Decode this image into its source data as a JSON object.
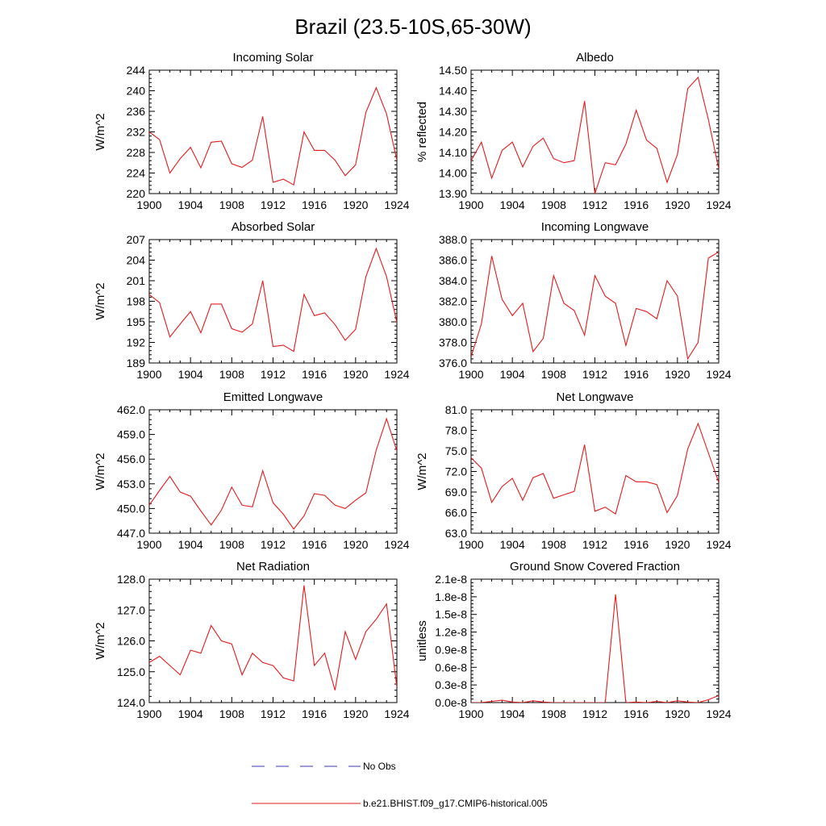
{
  "figure": {
    "title": "Brazil (23.5-10S,65-30W)",
    "legend": [
      {
        "label": "No Obs",
        "color": "#3a3ab4",
        "dash": "dashed"
      },
      {
        "label": "b.e21.BHIST.f09_g17.CMIP6-historical.005",
        "color": "#e41a1c",
        "dash": "solid"
      }
    ]
  },
  "chart_data": [
    {
      "type": "line",
      "title": "Incoming Solar",
      "ylabel": "W/m^2",
      "xlim": [
        1900,
        1924
      ],
      "ylim": [
        220,
        244
      ],
      "yticks": [
        220,
        224,
        228,
        232,
        236,
        240,
        244
      ],
      "ytick_labels": [
        "220",
        "224",
        "228",
        "232",
        "236",
        "240",
        "244"
      ],
      "xticks": [
        1900,
        1904,
        1908,
        1912,
        1916,
        1920,
        1924
      ],
      "x": [
        1900,
        1901,
        1902,
        1903,
        1904,
        1905,
        1906,
        1907,
        1908,
        1909,
        1910,
        1911,
        1912,
        1913,
        1914,
        1915,
        1916,
        1917,
        1918,
        1919,
        1920,
        1921,
        1922,
        1923,
        1924
      ],
      "series": [
        {
          "name": "b.e21.BHIST.f09_g17.CMIP6-historical.005",
          "color": "#e41a1c",
          "values": [
            232.0,
            230.5,
            224.0,
            226.8,
            229.0,
            225.0,
            230.0,
            230.2,
            225.8,
            225.1,
            226.5,
            235.0,
            222.2,
            222.8,
            221.7,
            232.0,
            228.4,
            228.4,
            226.5,
            223.5,
            225.6,
            235.8,
            240.6,
            235.5,
            226.5
          ]
        }
      ]
    },
    {
      "type": "line",
      "title": "Albedo",
      "ylabel": "% reflected",
      "xlim": [
        1900,
        1924
      ],
      "ylim": [
        13.9,
        14.5
      ],
      "yticks": [
        13.9,
        14.0,
        14.1,
        14.2,
        14.3,
        14.4,
        14.5
      ],
      "ytick_labels": [
        "13.90",
        "14.00",
        "14.10",
        "14.20",
        "14.30",
        "14.40",
        "14.50"
      ],
      "xticks": [
        1900,
        1904,
        1908,
        1912,
        1916,
        1920,
        1924
      ],
      "x": [
        1900,
        1901,
        1902,
        1903,
        1904,
        1905,
        1906,
        1907,
        1908,
        1909,
        1910,
        1911,
        1912,
        1913,
        1914,
        1915,
        1916,
        1917,
        1918,
        1919,
        1920,
        1921,
        1922,
        1923,
        1924
      ],
      "series": [
        {
          "name": "b.e21.BHIST.f09_g17.CMIP6-historical.005",
          "color": "#e41a1c",
          "values": [
            14.06,
            14.15,
            13.975,
            14.11,
            14.15,
            14.03,
            14.13,
            14.17,
            14.07,
            14.05,
            14.06,
            14.35,
            13.9,
            14.05,
            14.04,
            14.14,
            14.305,
            14.16,
            14.12,
            13.955,
            14.09,
            14.41,
            14.465,
            14.26,
            14.02
          ]
        }
      ]
    },
    {
      "type": "line",
      "title": "Absorbed Solar",
      "ylabel": "W/m^2",
      "xlim": [
        1900,
        1924
      ],
      "ylim": [
        189,
        207
      ],
      "yticks": [
        189,
        192,
        195,
        198,
        201,
        204,
        207
      ],
      "ytick_labels": [
        "189",
        "192",
        "195",
        "198",
        "201",
        "204",
        "207"
      ],
      "xticks": [
        1900,
        1904,
        1908,
        1912,
        1916,
        1920,
        1924
      ],
      "x": [
        1900,
        1901,
        1902,
        1903,
        1904,
        1905,
        1906,
        1907,
        1908,
        1909,
        1910,
        1911,
        1912,
        1913,
        1914,
        1915,
        1916,
        1917,
        1918,
        1919,
        1920,
        1921,
        1922,
        1923,
        1924
      ],
      "series": [
        {
          "name": "b.e21.BHIST.f09_g17.CMIP6-historical.005",
          "color": "#e41a1c",
          "values": [
            199.0,
            197.8,
            192.8,
            194.7,
            196.5,
            193.4,
            197.6,
            197.6,
            194.0,
            193.5,
            194.7,
            201.0,
            191.4,
            191.6,
            190.7,
            199.0,
            195.9,
            196.3,
            194.6,
            192.3,
            193.9,
            201.6,
            205.7,
            201.6,
            194.9
          ]
        }
      ]
    },
    {
      "type": "line",
      "title": "Incoming Longwave",
      "ylabel": "",
      "xlim": [
        1900,
        1924
      ],
      "ylim": [
        376,
        388
      ],
      "yticks": [
        376,
        378,
        380,
        382,
        384,
        386,
        388
      ],
      "ytick_labels": [
        "376.0",
        "378.0",
        "380.0",
        "382.0",
        "384.0",
        "386.0",
        "388.0"
      ],
      "xticks": [
        1900,
        1904,
        1908,
        1912,
        1916,
        1920,
        1924
      ],
      "x": [
        1900,
        1901,
        1902,
        1903,
        1904,
        1905,
        1906,
        1907,
        1908,
        1909,
        1910,
        1911,
        1912,
        1913,
        1914,
        1915,
        1916,
        1917,
        1918,
        1919,
        1920,
        1921,
        1922,
        1923,
        1924
      ],
      "series": [
        {
          "name": "b.e21.BHIST.f09_g17.CMIP6-historical.005",
          "color": "#e41a1c",
          "values": [
            376.6,
            379.8,
            386.4,
            382.2,
            380.6,
            381.8,
            377.1,
            378.4,
            384.5,
            381.8,
            381.1,
            378.7,
            384.5,
            382.5,
            381.8,
            377.7,
            381.3,
            381.0,
            380.3,
            384.0,
            382.5,
            376.4,
            378.0,
            386.2,
            386.8
          ]
        }
      ]
    },
    {
      "type": "line",
      "title": "Emitted Longwave",
      "ylabel": "W/m^2",
      "xlim": [
        1900,
        1924
      ],
      "ylim": [
        447,
        462
      ],
      "yticks": [
        447,
        450,
        453,
        456,
        459,
        462
      ],
      "ytick_labels": [
        "447.0",
        "450.0",
        "453.0",
        "456.0",
        "459.0",
        "462.0"
      ],
      "xticks": [
        1900,
        1904,
        1908,
        1912,
        1916,
        1920,
        1924
      ],
      "x": [
        1900,
        1901,
        1902,
        1903,
        1904,
        1905,
        1906,
        1907,
        1908,
        1909,
        1910,
        1911,
        1912,
        1913,
        1914,
        1915,
        1916,
        1917,
        1918,
        1919,
        1920,
        1921,
        1922,
        1923,
        1924
      ],
      "series": [
        {
          "name": "b.e21.BHIST.f09_g17.CMIP6-historical.005",
          "color": "#e41a1c",
          "values": [
            450.4,
            452.2,
            453.9,
            452.0,
            451.5,
            449.7,
            448.0,
            449.8,
            452.6,
            450.4,
            450.2,
            454.6,
            450.7,
            449.3,
            447.5,
            449.1,
            451.8,
            451.6,
            450.4,
            450.0,
            451.0,
            451.9,
            457.1,
            460.9,
            457.0
          ]
        }
      ]
    },
    {
      "type": "line",
      "title": "Net Longwave",
      "ylabel": "W/m^2",
      "xlim": [
        1900,
        1924
      ],
      "ylim": [
        63,
        81
      ],
      "yticks": [
        63,
        66,
        69,
        72,
        75,
        78,
        81
      ],
      "ytick_labels": [
        "63.0",
        "66.0",
        "69.0",
        "72.0",
        "75.0",
        "78.0",
        "81.0"
      ],
      "xticks": [
        1900,
        1904,
        1908,
        1912,
        1916,
        1920,
        1924
      ],
      "x": [
        1900,
        1901,
        1902,
        1903,
        1904,
        1905,
        1906,
        1907,
        1908,
        1909,
        1910,
        1911,
        1912,
        1913,
        1914,
        1915,
        1916,
        1917,
        1918,
        1919,
        1920,
        1921,
        1922,
        1923,
        1924
      ],
      "series": [
        {
          "name": "b.e21.BHIST.f09_g17.CMIP6-historical.005",
          "color": "#e41a1c",
          "values": [
            74.0,
            72.5,
            67.5,
            69.8,
            71.0,
            67.8,
            71.1,
            71.7,
            68.1,
            68.6,
            69.1,
            75.9,
            66.2,
            66.8,
            65.8,
            71.4,
            70.5,
            70.5,
            70.1,
            66.0,
            68.5,
            75.3,
            79.0,
            74.7,
            70.4
          ]
        }
      ]
    },
    {
      "type": "line",
      "title": "Net Radiation",
      "ylabel": "W/m^2",
      "xlim": [
        1900,
        1924
      ],
      "ylim": [
        124,
        128
      ],
      "yticks": [
        124,
        125,
        126,
        127,
        128
      ],
      "ytick_labels": [
        "124.0",
        "125.0",
        "126.0",
        "127.0",
        "128.0"
      ],
      "xticks": [
        1900,
        1904,
        1908,
        1912,
        1916,
        1920,
        1924
      ],
      "x": [
        1900,
        1901,
        1902,
        1903,
        1904,
        1905,
        1906,
        1907,
        1908,
        1909,
        1910,
        1911,
        1912,
        1913,
        1914,
        1915,
        1916,
        1917,
        1918,
        1919,
        1920,
        1921,
        1922,
        1923,
        1924
      ],
      "series": [
        {
          "name": "b.e21.BHIST.f09_g17.CMIP6-historical.005",
          "color": "#e41a1c",
          "values": [
            125.3,
            125.5,
            125.2,
            124.9,
            125.7,
            125.6,
            126.5,
            126.0,
            125.9,
            124.9,
            125.6,
            125.3,
            125.2,
            124.8,
            124.7,
            127.8,
            125.2,
            125.6,
            124.4,
            126.3,
            125.4,
            126.3,
            126.7,
            127.2,
            124.5
          ]
        }
      ]
    },
    {
      "type": "line",
      "title": "Ground Snow Covered Fraction",
      "ylabel": "unitless",
      "xlim": [
        1900,
        1924
      ],
      "ylim": [
        0.0,
        2.1e-08
      ],
      "yticks": [
        0.0,
        3e-09,
        6e-09,
        9e-09,
        1.2e-08,
        1.5e-08,
        1.8e-08,
        2.1e-08
      ],
      "ytick_labels": [
        "0.0e-8",
        "0.3e-8",
        "0.6e-8",
        "0.9e-8",
        "1.2e-8",
        "1.5e-8",
        "1.8e-8",
        "2.1e-8"
      ],
      "xticks": [
        1900,
        1904,
        1908,
        1912,
        1916,
        1920,
        1924
      ],
      "x": [
        1900,
        1901,
        1902,
        1903,
        1904,
        1905,
        1906,
        1907,
        1908,
        1909,
        1910,
        1911,
        1912,
        1913,
        1914,
        1915,
        1916,
        1917,
        1918,
        1919,
        1920,
        1921,
        1922,
        1923,
        1924
      ],
      "series": [
        {
          "name": "b.e21.BHIST.f09_g17.CMIP6-historical.005",
          "color": "#e41a1c",
          "values": [
            0,
            0,
            2e-10,
            4e-10,
            1e-10,
            0,
            3e-10,
            1e-10,
            0,
            0,
            0,
            0,
            0,
            0,
            1.84e-08,
            0,
            1e-10,
            0,
            2e-10,
            0,
            3e-10,
            1e-10,
            0,
            5e-10,
            1.2e-09
          ]
        }
      ]
    }
  ]
}
